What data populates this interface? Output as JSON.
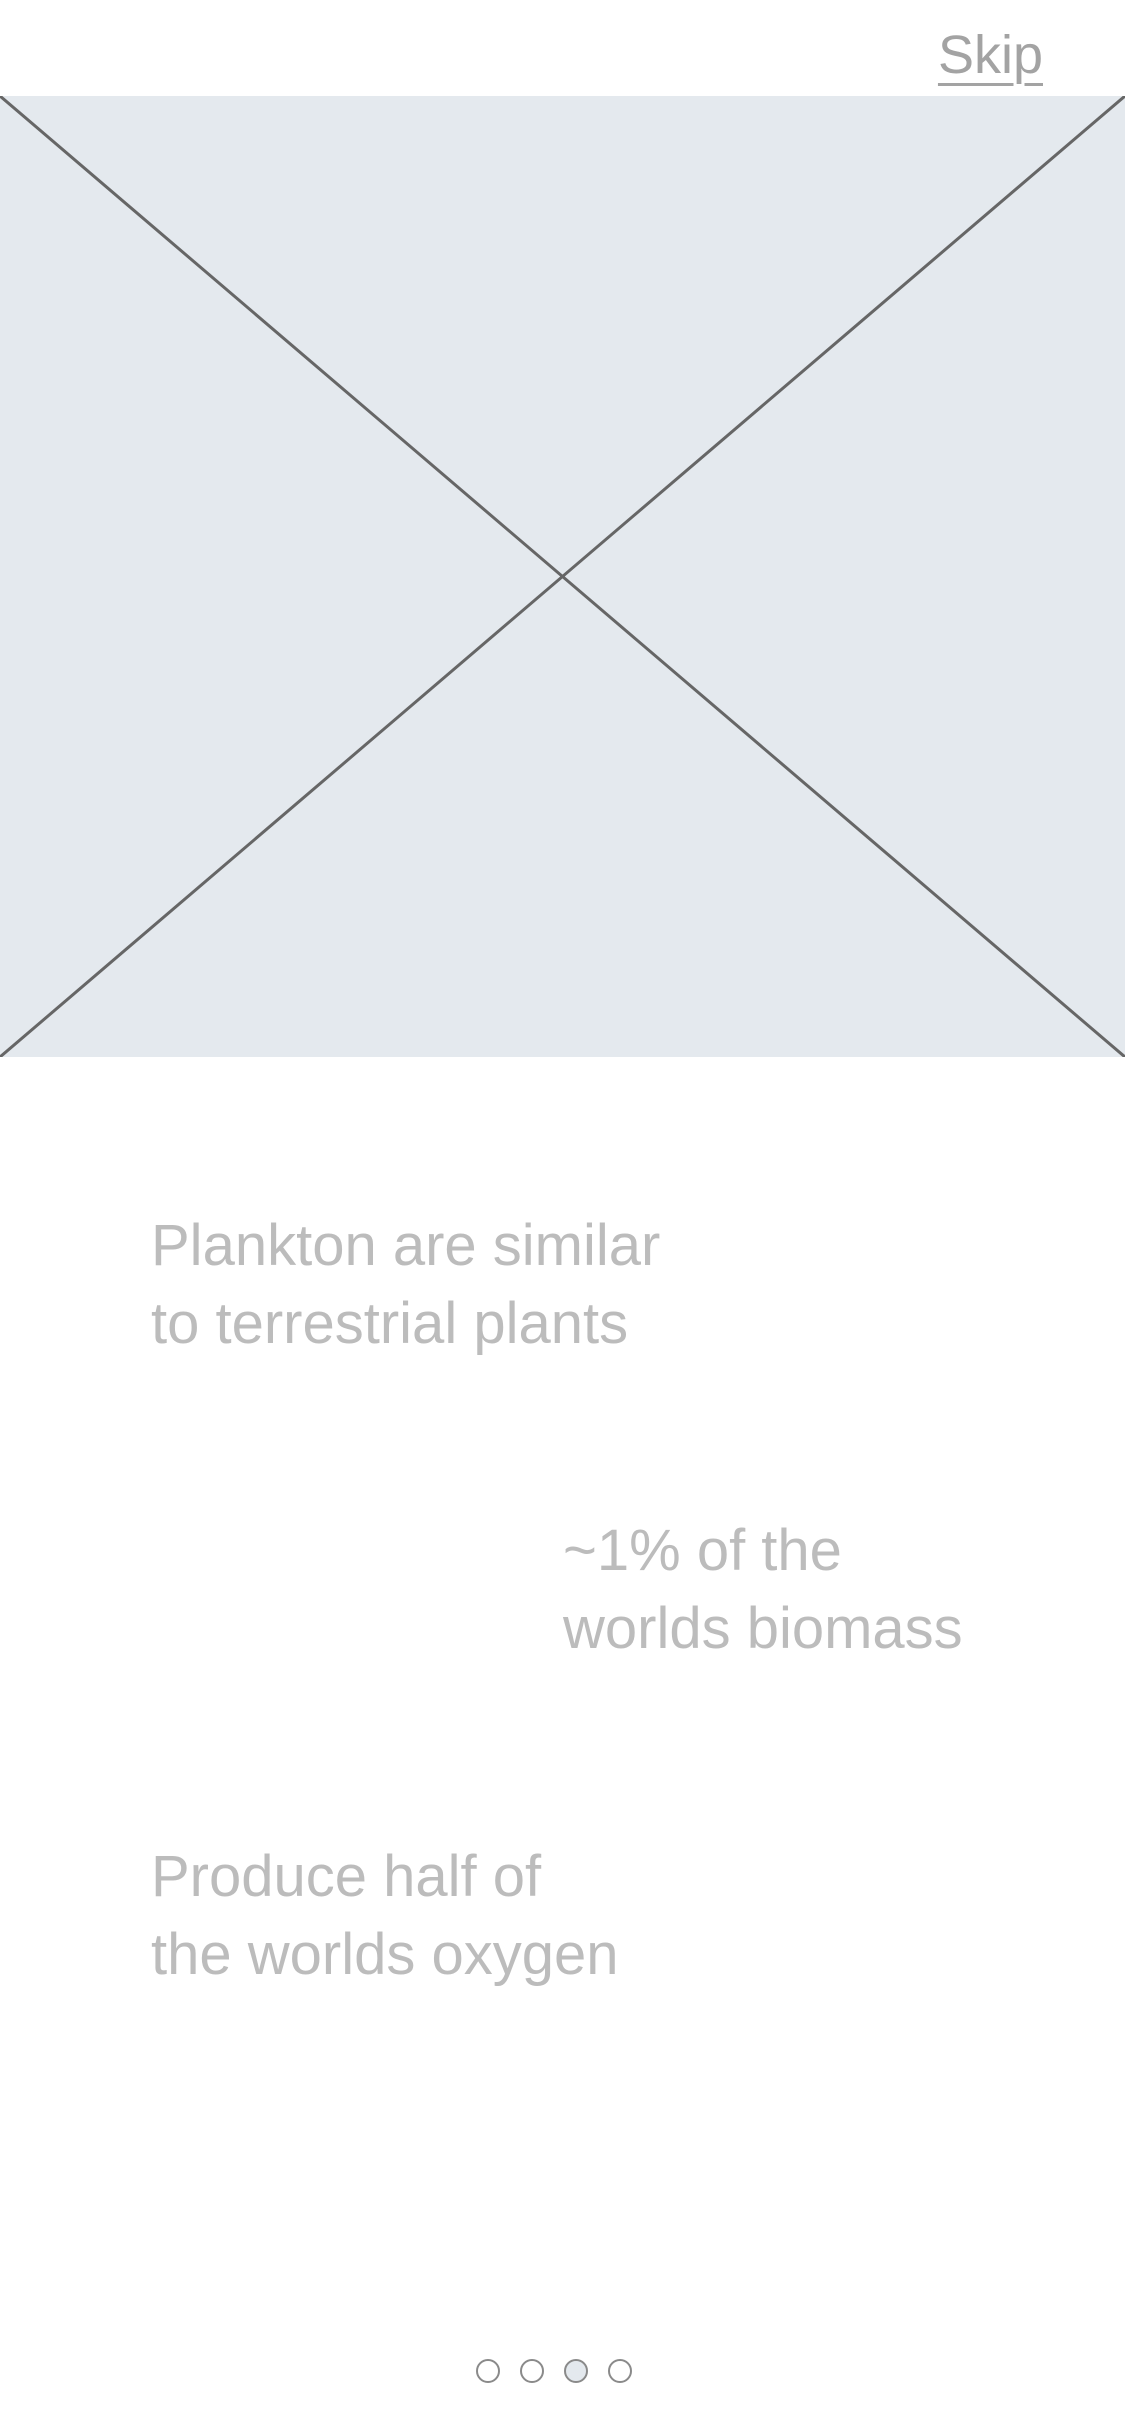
{
  "header": {
    "skip_label": "Skip"
  },
  "hero": {
    "placeholder_name": "image-placeholder",
    "background_color": "#e4e9ee",
    "line_color": "#666666"
  },
  "facts": [
    {
      "line1": "Plankton are similar",
      "line2": "to terrestrial plants"
    },
    {
      "line1": "~1% of the",
      "line2": "worlds biomass"
    },
    {
      "line1": "Produce half of",
      "line2": "the worlds oxygen"
    }
  ],
  "pager": {
    "total": 4,
    "active_index": 2
  }
}
